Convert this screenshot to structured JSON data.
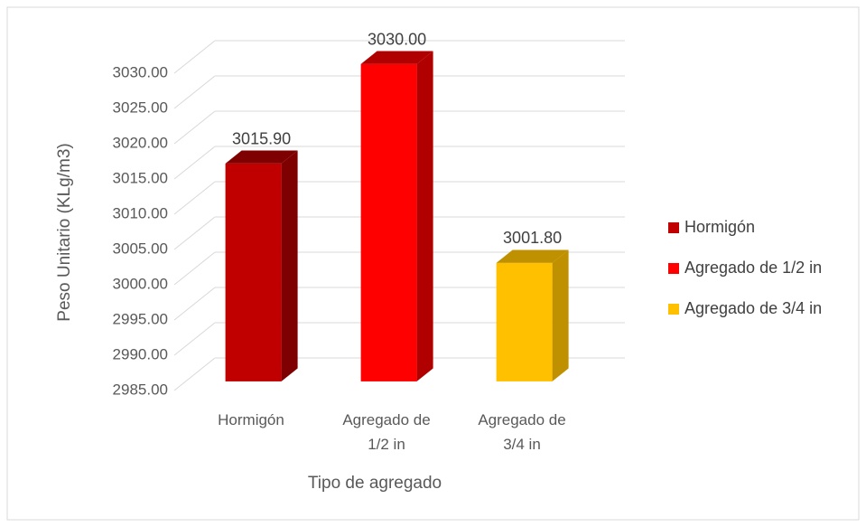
{
  "chart_data": {
    "type": "bar3d",
    "categories": [
      "Hormigón",
      "Agregado de 1/2 in",
      "Agregado de 3/4 in"
    ],
    "values": [
      3015.9,
      3030,
      3001.8
    ],
    "value_labels": [
      "3015.90",
      "3030.00",
      "3001.80"
    ],
    "colors": [
      "#c00000",
      "#ff0000",
      "#ffc000"
    ],
    "side_colors": [
      "#7f0000",
      "#b00000",
      "#bf9000"
    ],
    "ylim": [
      2985,
      3030
    ],
    "yticks": [
      {
        "value": 2985,
        "label": "2985.00"
      },
      {
        "value": 2990,
        "label": "2990.00"
      },
      {
        "value": 2995,
        "label": "2995.00"
      },
      {
        "value": 3000,
        "label": "3000.00"
      },
      {
        "value": 3005,
        "label": "3005.00"
      },
      {
        "value": 3010,
        "label": "3010.00"
      },
      {
        "value": 3015,
        "label": "3015.00"
      },
      {
        "value": 3020,
        "label": "3020.00"
      },
      {
        "value": 3025,
        "label": "3025.00"
      },
      {
        "value": 3030,
        "label": "3030.00"
      }
    ],
    "y_label": "Peso Unitario (KLg/m3)",
    "x_label": "Tipo de agregado",
    "grid": true,
    "legend": "right"
  }
}
